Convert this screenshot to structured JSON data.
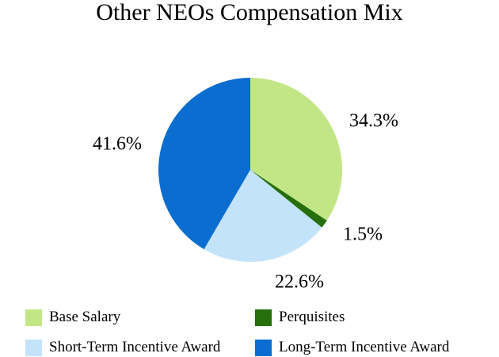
{
  "chart_data": {
    "type": "pie",
    "title": "Other NEOs Compensation Mix",
    "slices": [
      {
        "label": "Base Salary",
        "value": 34.3,
        "display": "34.3%",
        "color": "#c2e685"
      },
      {
        "label": "Perquisites",
        "value": 1.5,
        "display": "1.5%",
        "color": "#266f0c"
      },
      {
        "label": "Short-Term Incentive Award",
        "value": 22.6,
        "display": "22.6%",
        "color": "#c3e3fb"
      },
      {
        "label": "Long-Term Incentive Award",
        "value": 41.6,
        "display": "41.6%",
        "color": "#0b6dcf"
      }
    ],
    "start": "12 o'clock",
    "direction": "clockwise",
    "legend_position": "bottom"
  }
}
